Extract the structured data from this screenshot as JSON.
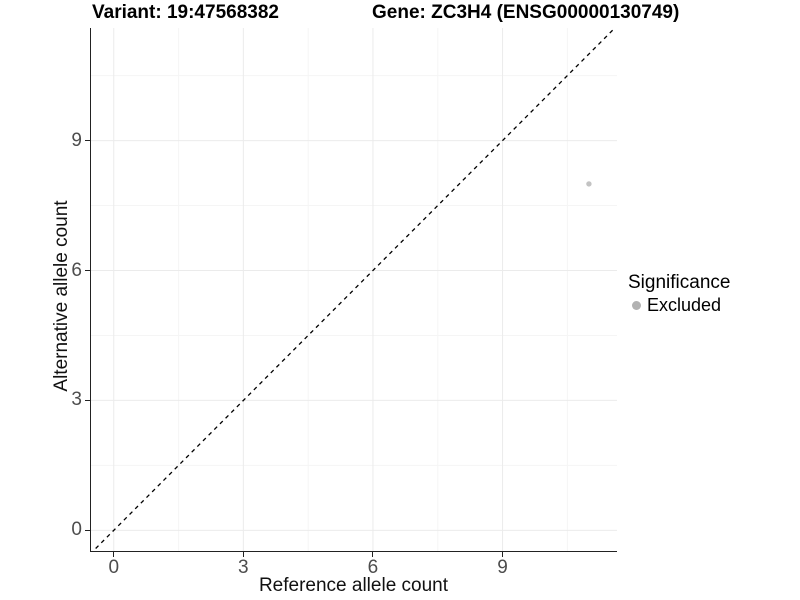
{
  "header": {
    "variant_title": "Variant: 19:47568382",
    "gene_title": "Gene: ZC3H4 (ENSG00000130749)"
  },
  "chart_data": {
    "type": "scatter",
    "title": "Variant: 19:47568382",
    "subtitle": "Gene: ZC3H4 (ENSG00000130749)",
    "xlabel": "Reference allele count",
    "ylabel": "Alternative allele count",
    "xlim": [
      -0.55,
      11.65
    ],
    "ylim": [
      -0.5,
      11.6
    ],
    "x_ticks": [
      0,
      3,
      6,
      9
    ],
    "y_ticks": [
      0,
      3,
      6,
      9
    ],
    "x_minor_ticks": [
      1.5,
      4.5,
      7.5,
      10.5
    ],
    "y_minor_ticks": [
      1.5,
      4.5,
      7.5,
      10.5
    ],
    "grid": true,
    "series": [
      {
        "name": "Excluded",
        "color": "#c3c3c3",
        "points": [
          {
            "x": 11,
            "y": 8
          }
        ]
      }
    ],
    "identity_line": {
      "slope": 1,
      "intercept": 0,
      "style": "dashed",
      "color": "#000000"
    },
    "legend": {
      "title": "Significance",
      "position": "right",
      "items": [
        {
          "label": "Excluded",
          "color": "#b2b2b2",
          "marker": "circle"
        }
      ]
    }
  },
  "style": {
    "major_grid_color": "#ebebeb",
    "minor_grid_color": "#f5f5f5",
    "axis_line_color": "#222222",
    "tick_label_color": "#4d4d4d",
    "point_radius": 2.7,
    "background": "#ffffff"
  }
}
